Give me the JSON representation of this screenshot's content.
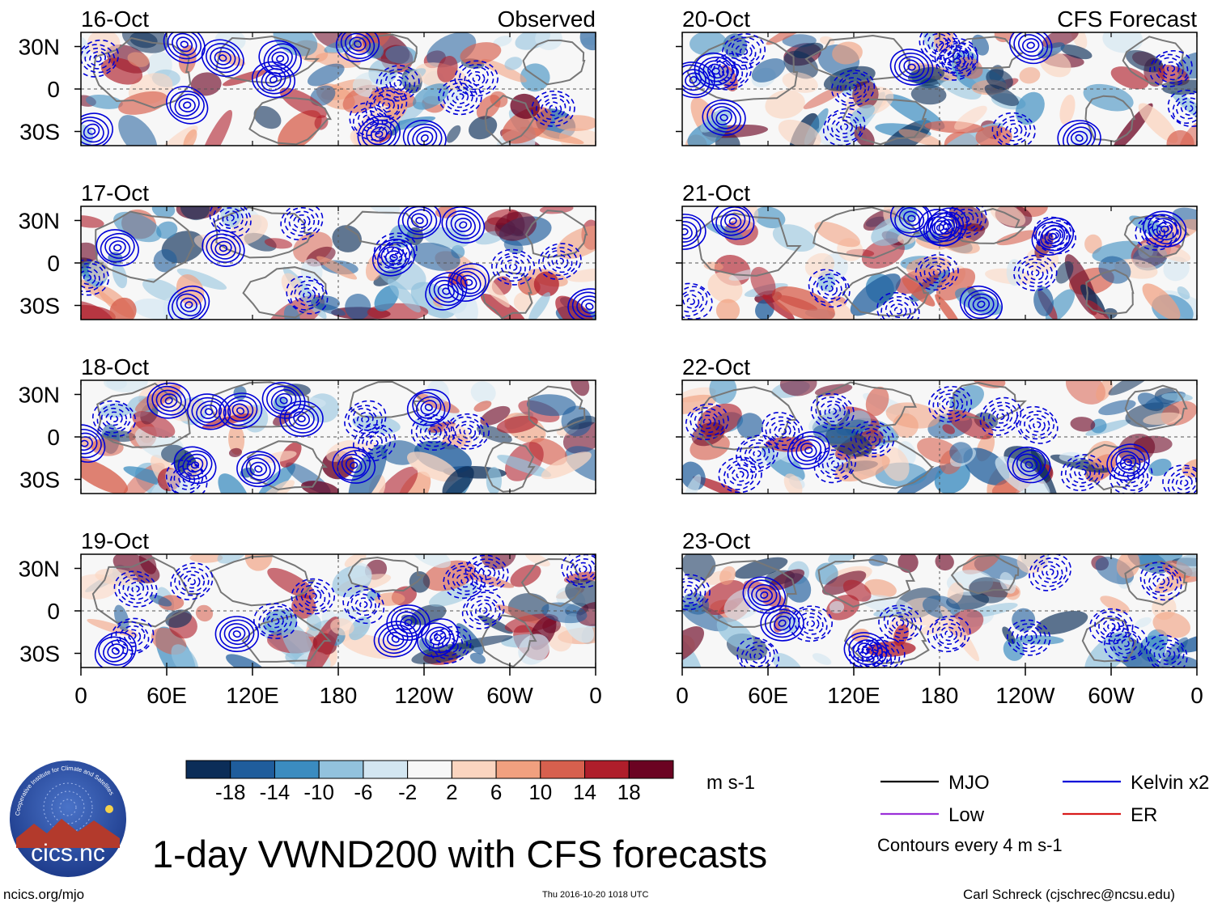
{
  "title": "1-day VWND200 with CFS forecasts",
  "footer": {
    "url": "ncics.org/mjo",
    "timestamp": "Thu 2016-10-20 1018 UTC",
    "author": "Carl Schreck (cjschrec@ncsu.edu)"
  },
  "logo": {
    "text": "cics.nc",
    "ring_text": "Cooperative Institute for Climate and Satellites"
  },
  "chart_data": {
    "type": "heatmap",
    "variable": "VWND200",
    "columns": [
      {
        "header": "Observed",
        "panels": [
          "16-Oct",
          "17-Oct",
          "18-Oct",
          "19-Oct"
        ]
      },
      {
        "header": "CFS Forecast",
        "panels": [
          "20-Oct",
          "21-Oct",
          "22-Oct",
          "23-Oct"
        ]
      }
    ],
    "x_ticks": [
      "0",
      "60E",
      "120E",
      "180",
      "120W",
      "60W",
      "0"
    ],
    "x_range": [
      0,
      360
    ],
    "y_ticks": [
      "30N",
      "0",
      "30S"
    ],
    "y_range": [
      -40,
      40
    ],
    "colorbar": {
      "units": "m s-1",
      "tick_labels": [
        "-18",
        "-14",
        "-10",
        "-6",
        "-2",
        "2",
        "6",
        "10",
        "14",
        "18"
      ],
      "colors": [
        "#0b2d58",
        "#1f5d9c",
        "#3b8cc0",
        "#92c2dd",
        "#d3e6f1",
        "#f7f7f7",
        "#fbd5c0",
        "#f1a07f",
        "#d7604e",
        "#af1e2b",
        "#6b0322"
      ]
    },
    "legend": [
      {
        "label": "MJO",
        "color": "#000000"
      },
      {
        "label": "Kelvin x2",
        "color": "#0000d8"
      },
      {
        "label": "Low",
        "color": "#9b30d8"
      },
      {
        "label": "ER",
        "color": "#d81b1b"
      }
    ],
    "contour_note": "Contours every 4 m s-1"
  }
}
